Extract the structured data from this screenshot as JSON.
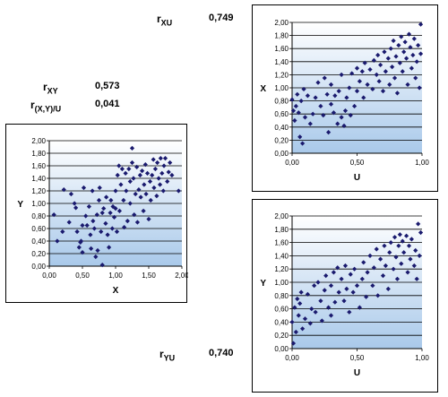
{
  "stats": {
    "r_xu": {
      "name": "r",
      "sub": "XU",
      "value": "0,749"
    },
    "r_xy": {
      "name": "r",
      "sub": "XY",
      "value": "0,573"
    },
    "r_xyu": {
      "name": "r",
      "sub": "(X,Y)/U",
      "value": "0,041"
    },
    "r_yu": {
      "name": "r",
      "sub": "YU",
      "value": "0,740"
    }
  },
  "chart_data": [
    {
      "id": "xy",
      "type": "scatter",
      "xlabel": "X",
      "ylabel": "Y",
      "xlim": [
        0,
        2
      ],
      "ylim": [
        0,
        2
      ],
      "xticks": [
        "0,00",
        "0,50",
        "1,00",
        "1,50",
        "2,00"
      ],
      "yticks": [
        "0,00",
        "0,20",
        "0,40",
        "0,60",
        "0,80",
        "1,00",
        "1,20",
        "1,40",
        "1,60",
        "1,80",
        "2,00"
      ],
      "grid": "horizontal",
      "color": "#1a1a6e",
      "points": [
        [
          0.07,
          0.82
        ],
        [
          0.12,
          0.4
        ],
        [
          0.2,
          0.55
        ],
        [
          0.22,
          1.22
        ],
        [
          0.3,
          0.7
        ],
        [
          0.33,
          1.15
        ],
        [
          0.38,
          1.0
        ],
        [
          0.4,
          0.93
        ],
        [
          0.42,
          0.55
        ],
        [
          0.45,
          0.3
        ],
        [
          0.47,
          0.38
        ],
        [
          0.48,
          0.4
        ],
        [
          0.5,
          0.22
        ],
        [
          0.5,
          0.65
        ],
        [
          0.52,
          1.25
        ],
        [
          0.55,
          0.8
        ],
        [
          0.57,
          0.65
        ],
        [
          0.6,
          0.95
        ],
        [
          0.62,
          0.5
        ],
        [
          0.63,
          0.28
        ],
        [
          0.65,
          1.2
        ],
        [
          0.66,
          0.72
        ],
        [
          0.68,
          0.6
        ],
        [
          0.7,
          0.15
        ],
        [
          0.72,
          0.82
        ],
        [
          0.73,
          0.25
        ],
        [
          0.75,
          1.05
        ],
        [
          0.76,
          1.25
        ],
        [
          0.78,
          0.55
        ],
        [
          0.8,
          0.85
        ],
        [
          0.8,
          0.02
        ],
        [
          0.82,
          0.92
        ],
        [
          0.85,
          0.68
        ],
        [
          0.86,
          1.1
        ],
        [
          0.88,
          0.5
        ],
        [
          0.9,
          0.3
        ],
        [
          0.92,
          0.85
        ],
        [
          0.93,
          1.05
        ],
        [
          0.95,
          0.6
        ],
        [
          0.96,
          0.95
        ],
        [
          0.98,
          0.78
        ],
        [
          1.0,
          1.2
        ],
        [
          1.0,
          0.92
        ],
        [
          1.02,
          0.55
        ],
        [
          1.03,
          1.45
        ],
        [
          1.05,
          1.6
        ],
        [
          1.06,
          0.88
        ],
        [
          1.08,
          1.3
        ],
        [
          1.1,
          1.55
        ],
        [
          1.12,
          1.05
        ],
        [
          1.13,
          0.62
        ],
        [
          1.15,
          1.48
        ],
        [
          1.16,
          1.2
        ],
        [
          1.18,
          0.72
        ],
        [
          1.2,
          1.55
        ],
        [
          1.22,
          1.35
        ],
        [
          1.22,
          1.0
        ],
        [
          1.25,
          1.65
        ],
        [
          1.25,
          1.88
        ],
        [
          1.27,
          1.4
        ],
        [
          1.28,
          0.82
        ],
        [
          1.3,
          1.15
        ],
        [
          1.32,
          1.58
        ],
        [
          1.33,
          0.7
        ],
        [
          1.35,
          1.22
        ],
        [
          1.37,
          1.45
        ],
        [
          1.38,
          1.1
        ],
        [
          1.4,
          1.52
        ],
        [
          1.42,
          0.88
        ],
        [
          1.43,
          1.3
        ],
        [
          1.45,
          1.62
        ],
        [
          1.46,
          1.15
        ],
        [
          1.48,
          1.48
        ],
        [
          1.5,
          0.75
        ],
        [
          1.52,
          1.35
        ],
        [
          1.53,
          1.05
        ],
        [
          1.55,
          1.45
        ],
        [
          1.57,
          1.7
        ],
        [
          1.58,
          1.25
        ],
        [
          1.6,
          1.55
        ],
        [
          1.62,
          1.12
        ],
        [
          1.63,
          1.65
        ],
        [
          1.65,
          1.4
        ],
        [
          1.67,
          1.3
        ],
        [
          1.68,
          1.72
        ],
        [
          1.7,
          1.48
        ],
        [
          1.72,
          1.2
        ],
        [
          1.73,
          1.6
        ],
        [
          1.75,
          1.72
        ],
        [
          1.78,
          1.35
        ],
        [
          1.8,
          1.5
        ],
        [
          1.82,
          1.65
        ],
        [
          1.85,
          1.45
        ],
        [
          1.95,
          1.2
        ]
      ]
    },
    {
      "id": "xu",
      "type": "scatter",
      "xlabel": "U",
      "ylabel": "X",
      "xlim": [
        0,
        1
      ],
      "ylim": [
        0,
        2
      ],
      "xticks": [
        "0,00",
        "0,50",
        "1,00"
      ],
      "yticks": [
        "0,00",
        "0,20",
        "0,40",
        "0,60",
        "0,80",
        "1,00",
        "1,20",
        "1,40",
        "1,60",
        "1,80",
        "2,00"
      ],
      "grid": "horizontal",
      "color": "#1a1a6e",
      "points": [
        [
          0.0,
          0.82
        ],
        [
          0.01,
          0.65
        ],
        [
          0.02,
          0.5
        ],
        [
          0.03,
          0.72
        ],
        [
          0.04,
          0.9
        ],
        [
          0.05,
          0.62
        ],
        [
          0.06,
          0.25
        ],
        [
          0.07,
          0.8
        ],
        [
          0.08,
          0.15
        ],
        [
          0.09,
          0.98
        ],
        [
          0.1,
          0.55
        ],
        [
          0.12,
          0.88
        ],
        [
          0.14,
          0.45
        ],
        [
          0.16,
          0.6
        ],
        [
          0.18,
          0.85
        ],
        [
          0.2,
          1.08
        ],
        [
          0.22,
          0.72
        ],
        [
          0.24,
          0.58
        ],
        [
          0.25,
          1.15
        ],
        [
          0.27,
          0.9
        ],
        [
          0.28,
          0.32
        ],
        [
          0.3,
          0.75
        ],
        [
          0.3,
          1.05
        ],
        [
          0.32,
          0.62
        ],
        [
          0.33,
          0.88
        ],
        [
          0.35,
          0.45
        ],
        [
          0.36,
          0.95
        ],
        [
          0.38,
          0.55
        ],
        [
          0.38,
          1.2
        ],
        [
          0.4,
          0.42
        ],
        [
          0.41,
          0.65
        ],
        [
          0.42,
          0.85
        ],
        [
          0.44,
          1.0
        ],
        [
          0.45,
          0.58
        ],
        [
          0.46,
          1.22
        ],
        [
          0.48,
          0.72
        ],
        [
          0.5,
          1.3
        ],
        [
          0.5,
          0.95
        ],
        [
          0.52,
          1.1
        ],
        [
          0.54,
          1.25
        ],
        [
          0.55,
          0.85
        ],
        [
          0.56,
          1.38
        ],
        [
          0.58,
          1.05
        ],
        [
          0.6,
          1.28
        ],
        [
          0.62,
          0.98
        ],
        [
          0.63,
          1.42
        ],
        [
          0.65,
          1.2
        ],
        [
          0.66,
          1.5
        ],
        [
          0.67,
          1.1
        ],
        [
          0.68,
          1.35
        ],
        [
          0.7,
          0.95
        ],
        [
          0.71,
          1.55
        ],
        [
          0.72,
          1.25
        ],
        [
          0.74,
          1.45
        ],
        [
          0.75,
          1.05
        ],
        [
          0.76,
          1.6
        ],
        [
          0.77,
          1.32
        ],
        [
          0.78,
          1.72
        ],
        [
          0.79,
          1.15
        ],
        [
          0.8,
          1.48
        ],
        [
          0.81,
          0.92
        ],
        [
          0.82,
          1.65
        ],
        [
          0.83,
          1.38
        ],
        [
          0.84,
          1.78
        ],
        [
          0.85,
          1.25
        ],
        [
          0.86,
          1.55
        ],
        [
          0.87,
          1.7
        ],
        [
          0.88,
          1.45
        ],
        [
          0.89,
          1.05
        ],
        [
          0.9,
          1.82
        ],
        [
          0.91,
          1.62
        ],
        [
          0.92,
          1.3
        ],
        [
          0.93,
          1.5
        ],
        [
          0.94,
          1.75
        ],
        [
          0.95,
          1.15
        ],
        [
          0.96,
          1.4
        ],
        [
          0.97,
          1.65
        ],
        [
          0.98,
          1.0
        ],
        [
          0.99,
          1.97
        ],
        [
          0.99,
          1.52
        ]
      ]
    },
    {
      "id": "yu",
      "type": "scatter",
      "xlabel": "U",
      "ylabel": "Y",
      "xlim": [
        0,
        1
      ],
      "ylim": [
        0,
        2
      ],
      "xticks": [
        "0,00",
        "0,50",
        "1,00"
      ],
      "yticks": [
        "0,00",
        "0,20",
        "0,40",
        "0,60",
        "0,80",
        "1,00",
        "1,20",
        "1,40",
        "1,60",
        "1,80",
        "2,00"
      ],
      "grid": "horizontal",
      "color": "#1a1a6e",
      "points": [
        [
          0.0,
          0.4
        ],
        [
          0.01,
          0.08
        ],
        [
          0.02,
          0.62
        ],
        [
          0.03,
          0.25
        ],
        [
          0.04,
          0.75
        ],
        [
          0.05,
          0.5
        ],
        [
          0.06,
          0.68
        ],
        [
          0.07,
          0.85
        ],
        [
          0.08,
          0.3
        ],
        [
          0.1,
          0.45
        ],
        [
          0.12,
          0.82
        ],
        [
          0.14,
          0.38
        ],
        [
          0.15,
          0.6
        ],
        [
          0.17,
          0.95
        ],
        [
          0.18,
          0.55
        ],
        [
          0.2,
          1.0
        ],
        [
          0.22,
          0.72
        ],
        [
          0.23,
          0.42
        ],
        [
          0.25,
          0.88
        ],
        [
          0.26,
          1.1
        ],
        [
          0.28,
          0.62
        ],
        [
          0.3,
          0.5
        ],
        [
          0.3,
          0.95
        ],
        [
          0.32,
          1.15
        ],
        [
          0.33,
          0.7
        ],
        [
          0.35,
          1.22
        ],
        [
          0.36,
          0.85
        ],
        [
          0.38,
          1.05
        ],
        [
          0.4,
          0.72
        ],
        [
          0.41,
          1.25
        ],
        [
          0.42,
          0.9
        ],
        [
          0.44,
          0.55
        ],
        [
          0.45,
          1.12
        ],
        [
          0.47,
          0.85
        ],
        [
          0.48,
          1.2
        ],
        [
          0.5,
          0.95
        ],
        [
          0.52,
          0.62
        ],
        [
          0.54,
          1.05
        ],
        [
          0.55,
          1.3
        ],
        [
          0.57,
          0.78
        ],
        [
          0.58,
          1.15
        ],
        [
          0.6,
          1.4
        ],
        [
          0.62,
          0.95
        ],
        [
          0.63,
          1.22
        ],
        [
          0.65,
          1.5
        ],
        [
          0.66,
          0.8
        ],
        [
          0.68,
          1.35
        ],
        [
          0.7,
          1.1
        ],
        [
          0.71,
          1.55
        ],
        [
          0.72,
          1.25
        ],
        [
          0.74,
          0.9
        ],
        [
          0.75,
          1.45
        ],
        [
          0.76,
          1.6
        ],
        [
          0.78,
          1.2
        ],
        [
          0.79,
          1.68
        ],
        [
          0.8,
          1.38
        ],
        [
          0.81,
          1.05
        ],
        [
          0.82,
          1.55
        ],
        [
          0.83,
          1.72
        ],
        [
          0.84,
          1.28
        ],
        [
          0.85,
          1.62
        ],
        [
          0.86,
          1.45
        ],
        [
          0.88,
          1.7
        ],
        [
          0.89,
          1.15
        ],
        [
          0.9,
          1.55
        ],
        [
          0.91,
          1.35
        ],
        [
          0.92,
          1.65
        ],
        [
          0.94,
          1.25
        ],
        [
          0.95,
          1.48
        ],
        [
          0.96,
          1.05
        ],
        [
          0.97,
          1.88
        ],
        [
          0.98,
          1.4
        ],
        [
          0.99,
          1.75
        ]
      ]
    }
  ]
}
